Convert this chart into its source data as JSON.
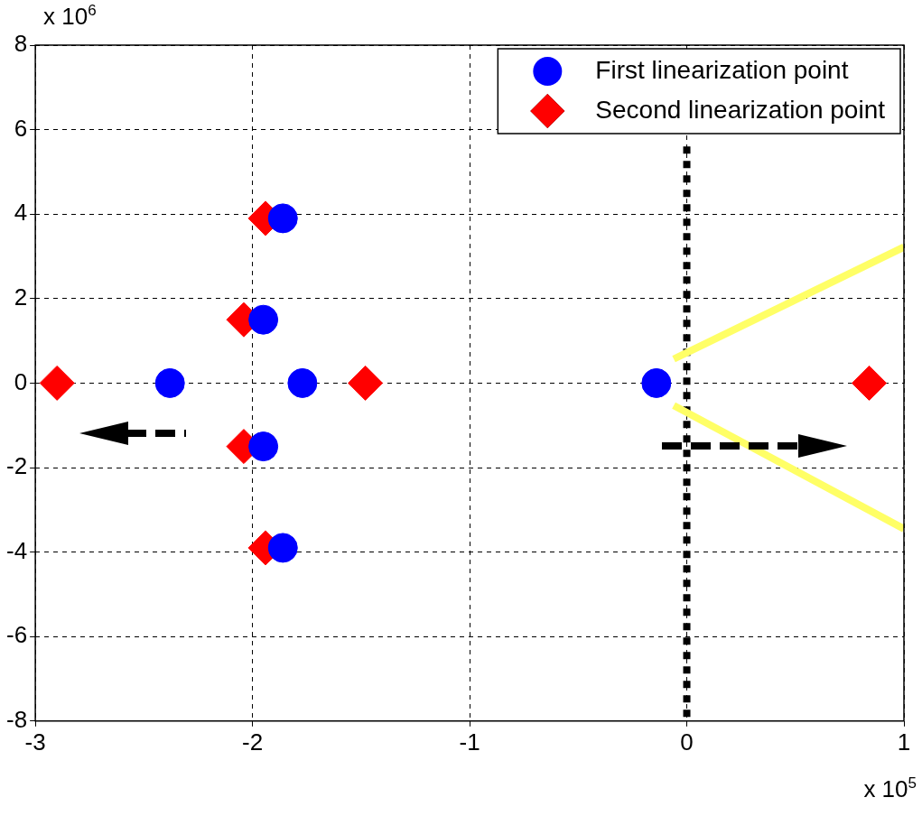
{
  "chart_data": {
    "type": "scatter",
    "xlim": [
      -3,
      1
    ],
    "ylim": [
      -8,
      8
    ],
    "xticks": [
      -3,
      -2,
      -1,
      0,
      1
    ],
    "yticks": [
      -8,
      -6,
      -4,
      -2,
      0,
      2,
      4,
      6,
      8
    ],
    "grid": true,
    "legend": "top right",
    "annotations": [
      "x 10$^{6}$",
      "x 10$^{5}$"
    ],
    "series": [
      {
        "name": "First linearization point",
        "type": "scatter",
        "marker": "circle",
        "color": "#0000ff",
        "x": [
          -2.38,
          -1.86,
          -1.95,
          -1.77,
          -1.95,
          -1.86,
          -0.14
        ],
        "values": [
          0,
          3.9,
          1.5,
          0,
          -1.5,
          -3.9,
          0
        ]
      },
      {
        "name": "Second linearization point",
        "type": "scatter",
        "marker": "diamond",
        "color": "#ff0000",
        "x": [
          -2.9,
          -1.94,
          -2.04,
          -1.48,
          -2.04,
          -1.94,
          0.84
        ],
        "values": [
          0,
          3.9,
          1.5,
          0,
          -1.5,
          -3.9,
          0
        ]
      },
      {
        "type": "line",
        "marker": "none",
        "color": "#ffff66",
        "line_style": "solid",
        "x": [
          -0.06,
          1
        ],
        "values": [
          0.57,
          3.22
        ]
      },
      {
        "type": "line",
        "marker": "none",
        "color": "#ffff66",
        "line_style": "solid",
        "x": [
          -0.06,
          1
        ],
        "values": [
          -0.53,
          -3.45
        ]
      },
      {
        "type": "line",
        "marker": "none",
        "color": "#000000",
        "line_style": "dotted",
        "x": [
          0,
          0
        ],
        "values": [
          5.6,
          -8
        ]
      }
    ]
  }
}
